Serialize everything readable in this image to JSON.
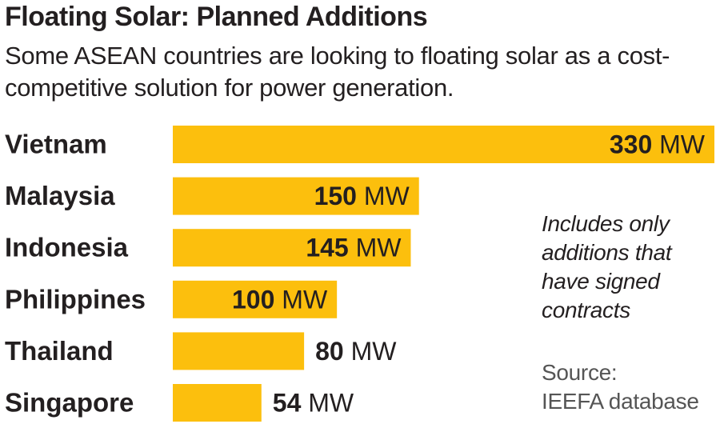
{
  "title": "Floating Solar: Planned Additions",
  "subtitle": "Some ASEAN countries are looking to floating solar as a cost-competitive solution for power generation.",
  "note_lines": [
    "Includes only",
    "additions that",
    "have signed",
    "contracts"
  ],
  "source_lines": [
    "Source:",
    "IEEFA database"
  ],
  "colors": {
    "bar": "#fcbf0d",
    "text": "#231f20",
    "muted": "#555555"
  },
  "chart_data": {
    "type": "bar",
    "orientation": "horizontal",
    "title": "Floating Solar: Planned Additions",
    "unit": "MW",
    "categories": [
      "Vietnam",
      "Malaysia",
      "Indonesia",
      "Philippines",
      "Thailand",
      "Singapore"
    ],
    "values": [
      330,
      150,
      145,
      100,
      80,
      54
    ],
    "xlim": [
      0,
      330
    ]
  }
}
